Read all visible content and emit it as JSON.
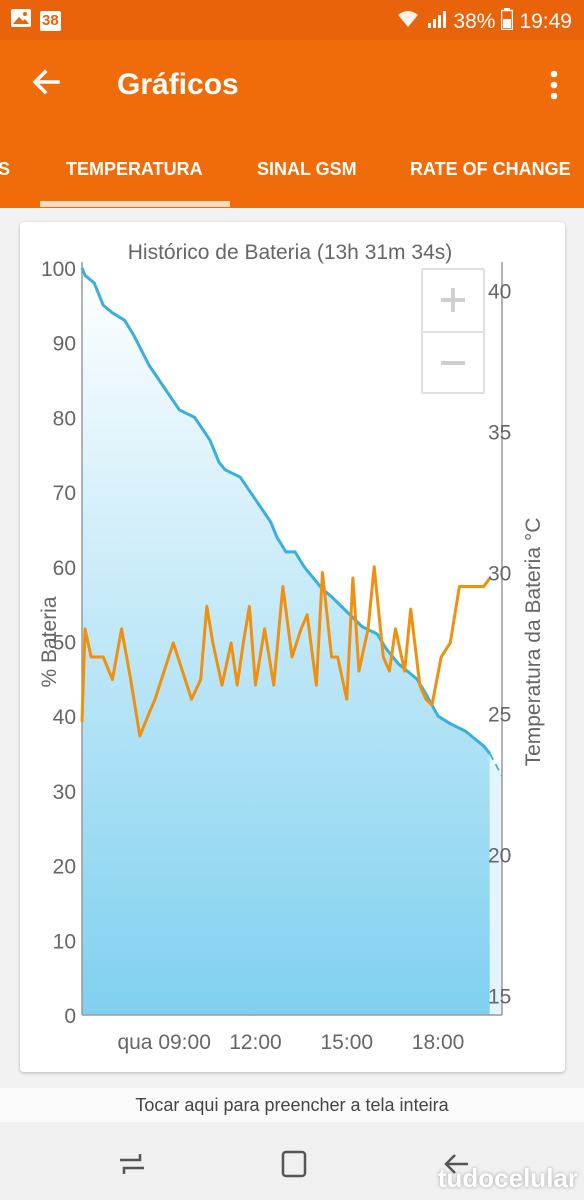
{
  "status_bar": {
    "notification_count": "38",
    "battery": "38%",
    "time": "19:49"
  },
  "app_bar": {
    "title": "Gráficos"
  },
  "tabs": [
    "S",
    "TEMPERATURA",
    "SINAL GSM",
    "RATE OF CHANGE"
  ],
  "active_tab": "TEMPERATURA",
  "chart_data": {
    "type": "area",
    "title": "Histórico de Bateria (13h 31m 34s)",
    "ylabel": "% Bateria",
    "ylabel_right": "Temperatura da Bateria °C",
    "ylim": [
      0,
      100
    ],
    "ylim_right": [
      14.3,
      40.8
    ],
    "yticks": [
      "0",
      "10",
      "20",
      "30",
      "40",
      "50",
      "60",
      "70",
      "80",
      "90",
      "100"
    ],
    "yticks_right": [
      "15",
      "20",
      "25",
      "30",
      "35",
      "40"
    ],
    "xticks": [
      "qua 09:00",
      "12:00",
      "15:00",
      "18:00"
    ],
    "xtick_hours": [
      9,
      12,
      15,
      18
    ],
    "xlim": [
      6.3,
      20.1
    ],
    "grid": false,
    "colors": {
      "battery": "#3aafd9",
      "temperature": "#f0900f",
      "fill": "#7fd0f0"
    },
    "series": [
      {
        "axis": "left",
        "x": [
          6.3,
          6.4,
          6.7,
          7.0,
          7.3,
          7.7,
          8.0,
          8.5,
          9.0,
          9.5,
          10.0,
          10.5,
          10.8,
          11.0,
          11.5,
          12.0,
          12.5,
          12.7,
          13.0,
          13.3,
          13.6,
          14.0,
          14.2,
          14.5,
          15.0,
          15.5,
          16.0,
          16.3,
          16.7,
          17.0,
          17.3,
          17.6,
          18.0,
          18.4,
          18.9,
          19.2,
          19.5,
          19.7
        ],
        "y": [
          100,
          99,
          98,
          95,
          94,
          93,
          91,
          87,
          84,
          81,
          80,
          77,
          74,
          73,
          72,
          69,
          66,
          64,
          62,
          62,
          60,
          58,
          57,
          56,
          54,
          52,
          51,
          49,
          47,
          46,
          45,
          43,
          40,
          39,
          38,
          37,
          36,
          35
        ]
      },
      {
        "axis": "left",
        "style": "dashed",
        "x": [
          19.7,
          20.1
        ],
        "y": [
          35,
          32
        ]
      },
      {
        "axis": "right",
        "x": [
          6.3,
          6.4,
          6.6,
          7.0,
          7.3,
          7.6,
          7.9,
          8.2,
          8.5,
          8.7,
          9.0,
          9.3,
          9.6,
          9.9,
          10.2,
          10.4,
          10.6,
          10.9,
          11.2,
          11.4,
          11.6,
          11.8,
          12.0,
          12.3,
          12.6,
          12.9,
          13.2,
          13.5,
          13.7,
          14.0,
          14.2,
          14.5,
          14.7,
          15.0,
          15.2,
          15.4,
          15.7,
          15.9,
          16.2,
          16.4,
          16.6,
          16.9,
          17.1,
          17.4,
          17.6,
          17.8,
          18.1,
          18.4,
          18.7,
          19.0,
          19.3,
          19.5,
          19.7
        ],
        "y": [
          24.7,
          28.0,
          27.0,
          27.0,
          26.2,
          28.0,
          26.2,
          24.2,
          25.0,
          25.5,
          26.5,
          27.5,
          26.5,
          25.5,
          26.2,
          28.8,
          27.5,
          26.0,
          27.5,
          26.0,
          27.5,
          28.8,
          26.0,
          28.0,
          26.0,
          29.5,
          27.0,
          28.0,
          28.5,
          26.0,
          30.0,
          27.0,
          27.0,
          25.5,
          29.8,
          26.5,
          28.0,
          30.2,
          27.0,
          26.5,
          28.0,
          26.5,
          28.7,
          26.0,
          25.5,
          25.3,
          27.0,
          27.5,
          29.5,
          29.5,
          29.5,
          29.5,
          29.8
        ]
      }
    ]
  },
  "hint_text": "Tocar aqui para preencher a tela inteira",
  "watermark": "tudocelular"
}
